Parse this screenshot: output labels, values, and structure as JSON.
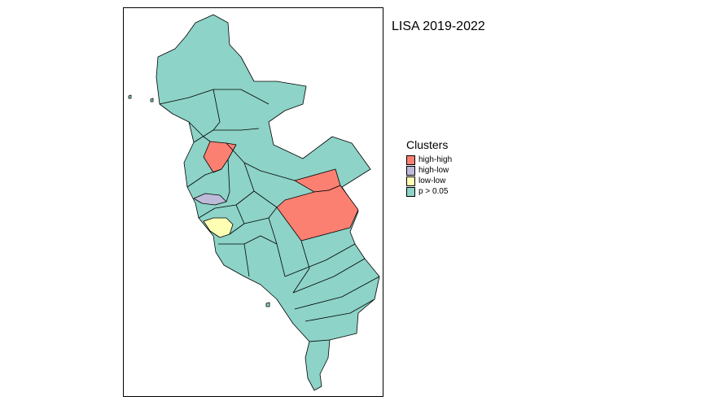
{
  "title": "LISA 2019-2022",
  "legend": {
    "title": "Clusters",
    "items": [
      {
        "label": "high-high",
        "color": "#fb8072"
      },
      {
        "label": "high-low",
        "color": "#bebada"
      },
      {
        "label": "low-low",
        "color": "#ffffb3"
      },
      {
        "label": "p > 0.05",
        "color": "#8dd3c7"
      }
    ]
  },
  "colors": {
    "not_significant": "#8dd3c7",
    "high_high": "#fb8072",
    "high_low": "#bebada",
    "low_low": "#ffffb3",
    "border": "#000000"
  }
}
